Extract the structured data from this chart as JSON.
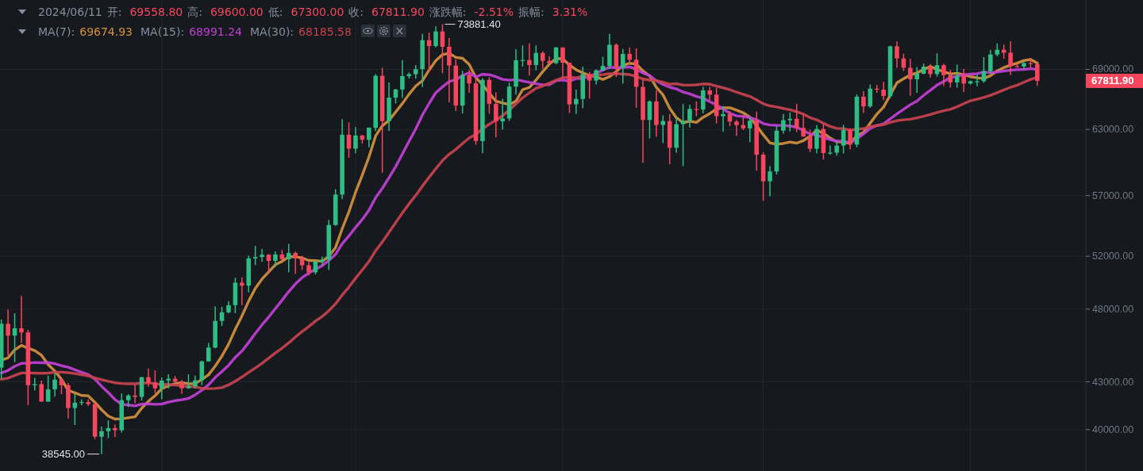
{
  "chart_data": {
    "type": "candlestick",
    "log": true,
    "grid": true,
    "tick_labels": "y",
    "title": "2024/06/11 开: 69558.80 高: 69600.00 低: 67300.00 收: 67811.90 涨跌幅: -2.51% 振幅: 3.31%",
    "subtitle": "MA(7): 69674.93 MA(15): 68991.24 MA(30): 68185.58",
    "ylim": [
      37570,
      76640
    ],
    "yticks": [
      {
        "value": 40000,
        "label": "40000.00"
      },
      {
        "value": 43000,
        "label": "43000.00"
      },
      {
        "value": 48000,
        "label": "48000.00"
      },
      {
        "value": 52000,
        "label": "52000.00"
      },
      {
        "value": 57000,
        "label": "57000.00"
      },
      {
        "value": 63000,
        "label": "63000.00"
      },
      {
        "value": 69000,
        "label": "69000.00"
      }
    ],
    "annotations": [
      "73881.40",
      "38545.00",
      "67811.90"
    ],
    "categories": [
      null,
      null,
      null,
      null,
      null,
      null,
      null,
      null,
      null,
      null,
      null,
      null,
      null,
      null,
      null,
      null,
      null,
      null,
      null,
      null,
      null,
      null,
      null,
      null,
      null,
      null,
      null,
      null,
      null,
      null,
      null,
      null,
      null,
      null,
      null,
      null,
      null,
      null,
      null,
      null,
      null,
      null,
      null,
      null,
      null,
      null,
      null,
      null,
      null,
      null,
      null,
      null,
      null,
      null,
      null,
      null,
      null,
      null,
      null,
      null,
      null,
      null,
      null,
      null,
      null,
      null,
      null,
      null,
      null,
      null,
      null,
      null,
      null,
      null,
      null,
      null,
      null,
      null,
      null,
      null,
      null,
      null,
      null,
      null,
      null,
      null,
      null,
      null,
      null,
      null,
      null,
      null,
      null,
      null,
      null,
      null,
      null,
      null,
      null,
      null,
      null,
      null,
      null,
      null,
      null,
      null,
      null,
      null,
      null,
      null,
      null,
      null,
      null,
      null,
      null,
      null,
      null,
      null,
      null,
      null,
      null,
      null,
      null,
      null,
      null,
      null,
      null,
      null,
      null,
      null,
      null,
      null,
      null,
      null,
      null,
      null,
      null,
      null,
      null,
      null,
      null,
      null,
      null,
      null,
      null,
      null,
      null,
      null,
      null,
      null,
      null,
      null,
      null,
      null,
      null,
      null
    ],
    "ohlc": [
      [
        43930,
        47250,
        43180,
        46950
      ],
      [
        46950,
        47970,
        44750,
        46110
      ],
      [
        46110,
        47700,
        44300,
        46630
      ],
      [
        46630,
        48970,
        45610,
        46340
      ],
      [
        46340,
        46520,
        41500,
        42780
      ],
      [
        42780,
        43260,
        42440,
        42850
      ],
      [
        42850,
        43080,
        41720,
        41730
      ],
      [
        41730,
        43400,
        41720,
        42510
      ],
      [
        42510,
        43580,
        42050,
        43140
      ],
      [
        43140,
        43200,
        42200,
        42780
      ],
      [
        42780,
        42930,
        40680,
        41330
      ],
      [
        41330,
        42200,
        40280,
        41660
      ],
      [
        41660,
        41870,
        41500,
        41700
      ],
      [
        41700,
        41880,
        41450,
        41580
      ],
      [
        41580,
        41690,
        39430,
        39570
      ],
      [
        39570,
        40180,
        38545,
        39900
      ],
      [
        39900,
        40560,
        39480,
        40090
      ],
      [
        40090,
        40300,
        39550,
        39960
      ],
      [
        39960,
        42250,
        39820,
        41820
      ],
      [
        41820,
        42200,
        41390,
        42120
      ],
      [
        42120,
        42840,
        41620,
        42030
      ],
      [
        42030,
        43310,
        41800,
        43300
      ],
      [
        43300,
        43880,
        42680,
        42940
      ],
      [
        42940,
        43750,
        42280,
        42580
      ],
      [
        42580,
        43290,
        41880,
        43080
      ],
      [
        43080,
        43490,
        42580,
        43200
      ],
      [
        43200,
        43380,
        42880,
        43010
      ],
      [
        43010,
        43120,
        42220,
        42580
      ],
      [
        42580,
        43490,
        42540,
        42710
      ],
      [
        42710,
        43400,
        42570,
        43100
      ],
      [
        43100,
        44400,
        42790,
        44350
      ],
      [
        44350,
        45610,
        44330,
        45290
      ],
      [
        45290,
        48200,
        45240,
        47150
      ],
      [
        47150,
        48170,
        46800,
        47770
      ],
      [
        47770,
        48590,
        47690,
        48290
      ],
      [
        48290,
        50330,
        47710,
        49960
      ],
      [
        49960,
        50370,
        48300,
        49740
      ],
      [
        49740,
        52040,
        49230,
        51830
      ],
      [
        51830,
        52820,
        51310,
        51940
      ],
      [
        51940,
        52570,
        51580,
        52120
      ],
      [
        52120,
        52170,
        50630,
        51640
      ],
      [
        51640,
        52380,
        51160,
        52140
      ],
      [
        52140,
        52490,
        51680,
        51770
      ],
      [
        51770,
        52990,
        50760,
        52260
      ],
      [
        52260,
        52370,
        50630,
        51850
      ],
      [
        51850,
        52040,
        50940,
        51290
      ],
      [
        51290,
        51550,
        50520,
        50750
      ],
      [
        50750,
        51700,
        50590,
        51570
      ],
      [
        51570,
        51960,
        51280,
        51730
      ],
      [
        51730,
        54940,
        50930,
        54520
      ],
      [
        54520,
        57550,
        54450,
        57090
      ],
      [
        57090,
        64000,
        56690,
        62500
      ],
      [
        62500,
        63680,
        60360,
        61200
      ],
      [
        61200,
        63230,
        60780,
        62430
      ],
      [
        62430,
        62480,
        61660,
        62030
      ],
      [
        62030,
        63200,
        61320,
        63170
      ],
      [
        63170,
        68500,
        62850,
        68330
      ],
      [
        68330,
        69170,
        59010,
        63800
      ],
      [
        63800,
        67640,
        62850,
        66110
      ],
      [
        66110,
        67000,
        65540,
        66930
      ],
      [
        66930,
        69990,
        66080,
        68300
      ],
      [
        68300,
        68670,
        68060,
        68500
      ],
      [
        68500,
        69450,
        68040,
        69020
      ],
      [
        69020,
        72800,
        67190,
        72120
      ],
      [
        72120,
        72960,
        68850,
        71480
      ],
      [
        71480,
        73650,
        71340,
        73080
      ],
      [
        73080,
        73881.4,
        68600,
        71400
      ],
      [
        71400,
        72360,
        65630,
        69400
      ],
      [
        69400,
        70040,
        64780,
        65320
      ],
      [
        65320,
        68850,
        64550,
        68390
      ],
      [
        68390,
        68930,
        66600,
        67550
      ],
      [
        67550,
        68110,
        61560,
        61910
      ],
      [
        61910,
        68100,
        60780,
        67910
      ],
      [
        67910,
        68200,
        64530,
        65490
      ],
      [
        65490,
        66650,
        62260,
        63780
      ],
      [
        63780,
        66000,
        63000,
        64060
      ],
      [
        64060,
        67620,
        63820,
        67230
      ],
      [
        67230,
        71150,
        66390,
        69960
      ],
      [
        69960,
        71560,
        69280,
        69990
      ],
      [
        69990,
        71770,
        68360,
        69460
      ],
      [
        69460,
        71550,
        68900,
        70740
      ],
      [
        70740,
        70910,
        69080,
        69890
      ],
      [
        69890,
        70360,
        69600,
        69650
      ],
      [
        69650,
        71370,
        69560,
        71330
      ],
      [
        71330,
        71340,
        68110,
        69700
      ],
      [
        69700,
        69710,
        64590,
        65450
      ],
      [
        65450,
        66910,
        64490,
        65980
      ],
      [
        65980,
        69290,
        65060,
        68510
      ],
      [
        68510,
        68730,
        66010,
        67840
      ],
      [
        67840,
        69000,
        67450,
        68900
      ],
      [
        68900,
        70330,
        68820,
        69360
      ],
      [
        69360,
        72800,
        69040,
        71620
      ],
      [
        71620,
        71760,
        68210,
        69150
      ],
      [
        69150,
        71170,
        67520,
        70630
      ],
      [
        70630,
        71310,
        69570,
        70010
      ],
      [
        70010,
        71230,
        65090,
        67200
      ],
      [
        67200,
        67930,
        59900,
        63920
      ],
      [
        63920,
        65840,
        62140,
        65740
      ],
      [
        65740,
        66870,
        62300,
        63430
      ],
      [
        63430,
        64360,
        61720,
        63810
      ],
      [
        63810,
        64490,
        59770,
        61280
      ],
      [
        61280,
        64130,
        60830,
        63510
      ],
      [
        63510,
        65480,
        59600,
        63840
      ],
      [
        63840,
        65420,
        63170,
        64990
      ],
      [
        64990,
        65720,
        64280,
        64930
      ],
      [
        64930,
        67230,
        64550,
        66840
      ],
      [
        66840,
        67200,
        65850,
        66410
      ],
      [
        66410,
        67080,
        63590,
        64280
      ],
      [
        64280,
        65280,
        62780,
        64480
      ],
      [
        64480,
        64790,
        63320,
        63760
      ],
      [
        63760,
        63910,
        62400,
        63420
      ],
      [
        63420,
        64360,
        62950,
        63110
      ],
      [
        63110,
        64170,
        61800,
        63840
      ],
      [
        63840,
        64730,
        59190,
        60640
      ],
      [
        60640,
        60850,
        56550,
        58250
      ],
      [
        58250,
        59600,
        56940,
        59120
      ],
      [
        59120,
        63320,
        58850,
        62890
      ],
      [
        62890,
        64490,
        62600,
        63890
      ],
      [
        63890,
        64650,
        62820,
        64030
      ],
      [
        64030,
        65490,
        62750,
        63160
      ],
      [
        63160,
        64390,
        62300,
        62330
      ],
      [
        62330,
        62990,
        60880,
        61190
      ],
      [
        61190,
        63420,
        60770,
        63050
      ],
      [
        63050,
        63470,
        60190,
        60790
      ],
      [
        60790,
        61490,
        60630,
        60830
      ],
      [
        60830,
        61850,
        60560,
        61480
      ],
      [
        61480,
        63450,
        60750,
        62940
      ],
      [
        62940,
        63120,
        61140,
        61580
      ],
      [
        61580,
        66440,
        61330,
        66210
      ],
      [
        66210,
        66750,
        64600,
        65240
      ],
      [
        65240,
        67450,
        65110,
        67020
      ],
      [
        67020,
        67400,
        66600,
        66920
      ],
      [
        66920,
        67700,
        65860,
        66270
      ],
      [
        66270,
        71520,
        66060,
        71450
      ],
      [
        71450,
        71980,
        69160,
        70150
      ],
      [
        70150,
        70670,
        68830,
        69170
      ],
      [
        69170,
        70100,
        66310,
        67970
      ],
      [
        67970,
        69250,
        66600,
        68550
      ],
      [
        68550,
        69610,
        68500,
        69290
      ],
      [
        69290,
        69560,
        68130,
        68510
      ],
      [
        68510,
        70690,
        68250,
        69440
      ],
      [
        69440,
        69590,
        67280,
        68400
      ],
      [
        68400,
        68940,
        67120,
        67650
      ],
      [
        67650,
        69500,
        67120,
        68350
      ],
      [
        68350,
        69040,
        66670,
        67540
      ],
      [
        67540,
        67860,
        67440,
        67770
      ],
      [
        67770,
        68460,
        67260,
        67770
      ],
      [
        67770,
        70290,
        67610,
        68810
      ],
      [
        68810,
        71060,
        68570,
        70570
      ],
      [
        70570,
        71760,
        70380,
        71080
      ],
      [
        71080,
        71630,
        70120,
        70760
      ],
      [
        70760,
        72000,
        68420,
        69340
      ],
      [
        69340,
        69580,
        69170,
        69310
      ],
      [
        69310,
        69850,
        69070,
        69650
      ],
      [
        69650,
        70200,
        69170,
        69558.8
      ],
      [
        69558.8,
        69600,
        67300,
        67811.9
      ]
    ],
    "colors": [
      "#2ebd85",
      "#f6465d",
      "#2ebd85",
      "#f6465d",
      "#f6465d",
      "#2ebd85",
      "#f6465d",
      "#2ebd85",
      "#2ebd85",
      "#f6465d",
      "#f6465d",
      "#2ebd85",
      "#2ebd85",
      "#f6465d",
      "#f6465d",
      "#2ebd85",
      "#2ebd85",
      "#f6465d",
      "#2ebd85",
      "#2ebd85",
      "#f6465d",
      "#2ebd85",
      "#f6465d",
      "#f6465d",
      "#2ebd85",
      "#2ebd85",
      "#f6465d",
      "#f6465d",
      "#2ebd85",
      "#2ebd85",
      "#2ebd85",
      "#2ebd85",
      "#2ebd85",
      "#2ebd85",
      "#2ebd85",
      "#2ebd85",
      "#f6465d",
      "#2ebd85",
      "#2ebd85",
      "#2ebd85",
      "#f6465d",
      "#2ebd85",
      "#f6465d",
      "#2ebd85",
      "#f6465d",
      "#f6465d",
      "#f6465d",
      "#2ebd85",
      "#2ebd85",
      "#2ebd85",
      "#2ebd85",
      "#2ebd85",
      "#f6465d",
      "#2ebd85",
      "#f6465d",
      "#2ebd85",
      "#2ebd85",
      "#f6465d",
      "#2ebd85",
      "#2ebd85",
      "#2ebd85",
      "#2ebd85",
      "#2ebd85",
      "#2ebd85",
      "#f6465d",
      "#2ebd85",
      "#f6465d",
      "#f6465d",
      "#f6465d",
      "#2ebd85",
      "#f6465d",
      "#f6465d",
      "#2ebd85",
      "#f6465d",
      "#f6465d",
      "#2ebd85",
      "#2ebd85",
      "#2ebd85",
      "#2ebd85",
      "#f6465d",
      "#2ebd85",
      "#f6465d",
      "#f6465d",
      "#2ebd85",
      "#f6465d",
      "#f6465d",
      "#2ebd85",
      "#2ebd85",
      "#f6465d",
      "#2ebd85",
      "#2ebd85",
      "#2ebd85",
      "#f6465d",
      "#2ebd85",
      "#f6465d",
      "#f6465d",
      "#f6465d",
      "#2ebd85",
      "#f6465d",
      "#2ebd85",
      "#f6465d",
      "#2ebd85",
      "#2ebd85",
      "#2ebd85",
      "#f6465d",
      "#2ebd85",
      "#f6465d",
      "#f6465d",
      "#2ebd85",
      "#f6465d",
      "#f6465d",
      "#f6465d",
      "#2ebd85",
      "#f6465d",
      "#f6465d",
      "#2ebd85",
      "#2ebd85",
      "#2ebd85",
      "#2ebd85",
      "#f6465d",
      "#f6465d",
      "#f6465d",
      "#2ebd85",
      "#f6465d",
      "#2ebd85",
      "#2ebd85",
      "#2ebd85",
      "#f6465d",
      "#2ebd85",
      "#f6465d",
      "#2ebd85",
      "#f6465d",
      "#f6465d",
      "#2ebd85",
      "#f6465d",
      "#f6465d",
      "#f6465d",
      "#2ebd85",
      "#2ebd85",
      "#f6465d",
      "#2ebd85",
      "#f6465d",
      "#f6465d",
      "#2ebd85",
      "#f6465d",
      "#2ebd85",
      "#2ebd85",
      "#2ebd85",
      "#2ebd85",
      "#2ebd85",
      "#f6465d",
      "#f6465d",
      "#f6465d",
      "#2ebd85",
      "#f6465d",
      "#f6465d"
    ],
    "series": [
      {
        "type": "line",
        "color": "#d4903e",
        "values": [
          44420,
          44590,
          45130,
          45440,
          45240,
          45080,
          44770,
          44140,
          43710,
          43160,
          42450,
          42290,
          42120,
          42100,
          41680,
          41220,
          40830,
          40640,
          40660,
          40720,
          40780,
          41320,
          41750,
          42110,
          42550,
          42750,
          42880,
          42960,
          42870,
          42890,
          43150,
          43460,
          44030,
          44710,
          45520,
          46560,
          47510,
          48580,
          49530,
          50240,
          50790,
          51340,
          51600,
          51960,
          51960,
          51870,
          51670,
          51660,
          51600,
          52000,
          52690,
          54210,
          55620,
          57290,
          58790,
          60420,
          62390,
          63350,
          63870,
          64690,
          65520,
          66450,
          67280,
          67830,
          68920,
          69920,
          70560,
          70710,
          70260,
          70170,
          69520,
          68150,
          67410,
          66570,
          65760,
          65580,
          65420,
          65760,
          66920,
          67140,
          67890,
          68760,
          69560,
          70150,
          70110,
          69460,
          68960,
          68640,
          68350,
          68240,
          67960,
          68240,
          68770,
          69430,
          69640,
          69550,
          68840,
          68320,
          67150,
          66390,
          65060,
          64130,
          63650,
          63800,
          63680,
          64170,
          64540,
          64970,
          65110,
          65100,
          64870,
          64610,
          64190,
          63360,
          62500,
          61730,
          61610,
          61680,
          61810,
          61710,
          61950,
          62370,
          62930,
          62630,
          62200,
          61830,
          61800,
          61690,
          62410,
          62720,
          63610,
          64480,
          65170,
          66380,
          67610,
          68030,
          68420,
          68640,
          68980,
          69300,
          69010,
          68760,
          68540,
          68600,
          68450,
          68240,
          68130,
          68040,
          68350,
          68840,
          69190,
          69440,
          69660,
          69930,
          70040,
          69674.93
        ]
      },
      {
        "type": "line",
        "color": "#c23fd6",
        "values": [
          43580,
          43750,
          44020,
          44220,
          44230,
          44280,
          44260,
          44270,
          44200,
          44060,
          43960,
          43790,
          43630,
          43470,
          43180,
          42710,
          42310,
          41860,
          41560,
          41520,
          41460,
          41570,
          41590,
          41560,
          41580,
          41700,
          41790,
          41850,
          41930,
          42160,
          42460,
          42800,
          43280,
          43680,
          44090,
          44620,
          45050,
          45640,
          46270,
          46870,
          47430,
          48040,
          48650,
          49290,
          49870,
          50340,
          50700,
          50990,
          51260,
          51670,
          52150,
          53000,
          53620,
          54320,
          54980,
          55750,
          56830,
          57630,
          58560,
          59560,
          60700,
          61880,
          63040,
          64400,
          65530,
          66600,
          67190,
          67740,
          67930,
          68360,
          68650,
          68220,
          68490,
          68450,
          68240,
          67960,
          67880,
          67940,
          67800,
          67660,
          67510,
          67410,
          67420,
          67820,
          67910,
          67770,
          68040,
          68080,
          68240,
          68580,
          68930,
          69230,
          69170,
          69210,
          69250,
          69010,
          68620,
          68360,
          67830,
          67440,
          67160,
          66990,
          66680,
          66490,
          66230,
          66060,
          65710,
          65390,
          64980,
          64560,
          64310,
          64260,
          64130,
          63940,
          63570,
          63430,
          63390,
          63390,
          63330,
          63210,
          62910,
          62560,
          62480,
          62230,
          62040,
          61910,
          61900,
          61740,
          62120,
          62580,
          63110,
          63380,
          63540,
          64030,
          64500,
          64950,
          65400,
          65770,
          66340,
          66850,
          67380,
          67740,
          68150,
          68290,
          68450,
          68500,
          68550,
          68720,
          68660,
          68720,
          68830,
          68920,
          68970,
          69000,
          69070,
          68991.24
        ]
      },
      {
        "type": "line",
        "color": "#c8424f",
        "values": [
          43160,
          43240,
          43420,
          43580,
          43580,
          43570,
          43560,
          43570,
          43630,
          43630,
          43600,
          43540,
          43470,
          43390,
          43250,
          43140,
          43030,
          42940,
          42890,
          42870,
          42870,
          42910,
          42930,
          42880,
          42820,
          42830,
          42790,
          42740,
          42700,
          42670,
          42580,
          42560,
          42570,
          42620,
          42800,
          43040,
          43310,
          43620,
          43910,
          44220,
          44570,
          44920,
          45250,
          45610,
          46020,
          46400,
          46750,
          47140,
          47470,
          47880,
          48390,
          49030,
          49630,
          50300,
          50930,
          51590,
          52440,
          53140,
          53920,
          54720,
          55520,
          56290,
          57020,
          57830,
          58600,
          59370,
          60100,
          60680,
          61130,
          61670,
          62200,
          62530,
          63060,
          63510,
          63900,
          64330,
          64880,
          65490,
          66100,
          66600,
          67050,
          67300,
          67580,
          67880,
          68130,
          68210,
          68130,
          68290,
          68350,
          68410,
          68450,
          68550,
          68560,
          68510,
          68460,
          68260,
          68010,
          67890,
          67830,
          67670,
          67460,
          67520,
          67380,
          67370,
          67400,
          67500,
          67470,
          67280,
          67100,
          66910,
          66660,
          66440,
          66240,
          65890,
          65500,
          65290,
          65190,
          65040,
          64910,
          64720,
          64480,
          64140,
          63930,
          63600,
          63300,
          63110,
          63080,
          62940,
          63030,
          63080,
          63270,
          63380,
          63460,
          63680,
          63850,
          63930,
          63980,
          64120,
          64280,
          64440,
          64640,
          64820,
          64950,
          65200,
          65510,
          65800,
          65960,
          66130,
          66350,
          66610,
          66890,
          67160,
          67370,
          67670,
          67960,
          68185.58
        ]
      }
    ]
  }
}
